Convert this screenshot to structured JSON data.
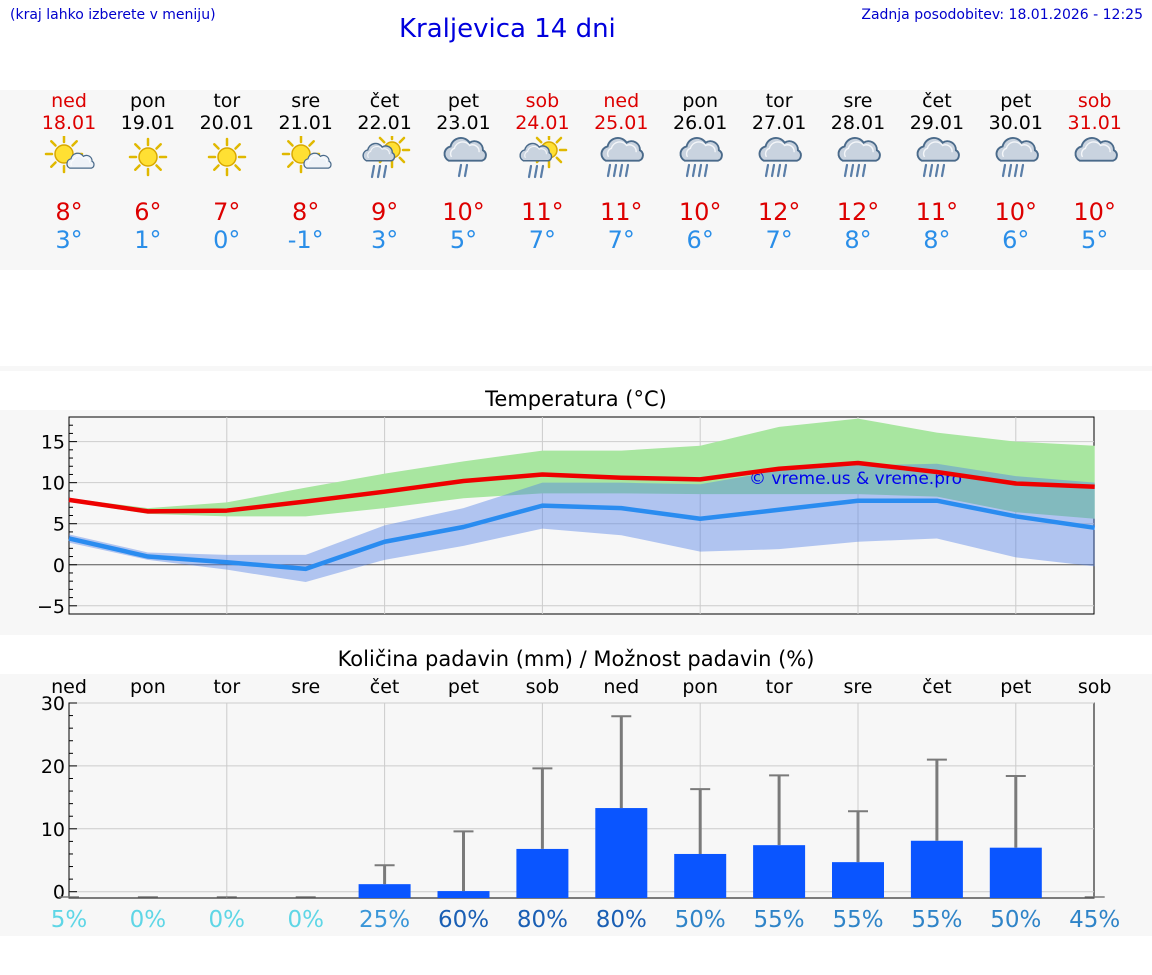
{
  "header": {
    "left_note": "(kraj lahko izberete v meniju)",
    "title": "Kraljevica 14 dni",
    "updated": "Zadnja posodobitev: 18.01.2026 - 12:25"
  },
  "days": [
    {
      "name": "ned",
      "date": "18.01",
      "weekend": true,
      "icon": "sun-cloud-icon",
      "max": "8°",
      "min": "3°"
    },
    {
      "name": "pon",
      "date": "19.01",
      "weekend": false,
      "icon": "sun-icon",
      "max": "6°",
      "min": "1°"
    },
    {
      "name": "tor",
      "date": "20.01",
      "weekend": false,
      "icon": "sun-icon",
      "max": "7°",
      "min": "0°"
    },
    {
      "name": "sre",
      "date": "21.01",
      "weekend": false,
      "icon": "sun-cloud-icon",
      "max": "8°",
      "min": "-1°"
    },
    {
      "name": "čet",
      "date": "22.01",
      "weekend": false,
      "icon": "sun-cloud-rain-icon",
      "max": "9°",
      "min": "3°"
    },
    {
      "name": "pet",
      "date": "23.01",
      "weekend": false,
      "icon": "cloud-light-rain-icon",
      "max": "10°",
      "min": "5°"
    },
    {
      "name": "sob",
      "date": "24.01",
      "weekend": true,
      "icon": "sun-cloud-rain-icon",
      "max": "11°",
      "min": "7°"
    },
    {
      "name": "ned",
      "date": "25.01",
      "weekend": true,
      "icon": "cloud-rain-icon",
      "max": "11°",
      "min": "7°"
    },
    {
      "name": "pon",
      "date": "26.01",
      "weekend": false,
      "icon": "cloud-rain-icon",
      "max": "10°",
      "min": "6°"
    },
    {
      "name": "tor",
      "date": "27.01",
      "weekend": false,
      "icon": "cloud-rain-icon",
      "max": "12°",
      "min": "7°"
    },
    {
      "name": "sre",
      "date": "28.01",
      "weekend": false,
      "icon": "cloud-rain-icon",
      "max": "12°",
      "min": "8°"
    },
    {
      "name": "čet",
      "date": "29.01",
      "weekend": false,
      "icon": "cloud-rain-icon",
      "max": "11°",
      "min": "8°"
    },
    {
      "name": "pet",
      "date": "30.01",
      "weekend": false,
      "icon": "cloud-rain-icon",
      "max": "10°",
      "min": "6°"
    },
    {
      "name": "sob",
      "date": "31.01",
      "weekend": true,
      "icon": "cloud-icon",
      "max": "10°",
      "min": "5°"
    }
  ],
  "colors": {
    "weekend": "#dd0000",
    "weekday": "#000000",
    "tmax": "#dd0000",
    "tmin": "#2a8ee8",
    "max_band": "#a8e6a0",
    "min_band": "#a9c3f4",
    "overlap_band": "#7cc29c",
    "bar": "#0a55ff",
    "error": "#7a7a7a"
  },
  "chart_data": [
    {
      "type": "line",
      "title": "Temperatura (°C)",
      "watermark": "© vreme.us & vreme.pro",
      "ylim": [
        -6,
        18
      ],
      "yticks": [
        -5,
        0,
        5,
        10,
        15
      ],
      "ytick_labels": [
        "−5",
        "0",
        "5",
        "10",
        "15"
      ],
      "x": [
        0,
        1,
        2,
        3,
        4,
        5,
        6,
        7,
        8,
        9,
        10,
        11,
        12,
        13
      ],
      "series": [
        {
          "name": "max",
          "values": [
            7.9,
            6.5,
            6.6,
            7.7,
            8.9,
            10.2,
            11.0,
            10.6,
            10.4,
            11.7,
            12.4,
            11.3,
            9.9,
            9.5
          ],
          "band_low": [
            7.7,
            6.2,
            5.9,
            5.9,
            6.9,
            8.1,
            8.7,
            8.7,
            8.6,
            8.6,
            8.6,
            8.3,
            6.4,
            5.6
          ],
          "band_high": [
            8.1,
            6.9,
            7.6,
            9.4,
            11.1,
            12.6,
            13.9,
            13.9,
            14.5,
            16.8,
            17.8,
            16.1,
            15.0,
            14.5
          ]
        },
        {
          "name": "min",
          "values": [
            3.2,
            1.0,
            0.3,
            -0.5,
            2.8,
            4.6,
            7.2,
            6.9,
            5.6,
            6.7,
            7.8,
            7.8,
            5.9,
            4.5
          ],
          "band_low": [
            2.7,
            0.6,
            -0.6,
            -2.1,
            0.6,
            2.3,
            4.4,
            3.6,
            1.6,
            1.9,
            2.8,
            3.2,
            0.9,
            -0.2
          ],
          "band_high": [
            3.7,
            1.5,
            1.2,
            1.2,
            4.8,
            6.9,
            10.0,
            10.0,
            9.8,
            11.5,
            12.1,
            12.3,
            10.8,
            10.0
          ]
        }
      ]
    },
    {
      "type": "bar",
      "title": "Količina padavin (mm) / Možnost padavin (%)",
      "ylim": [
        -1,
        30
      ],
      "yticks": [
        0,
        10,
        20,
        30
      ],
      "ytick_labels": [
        "0",
        "10",
        "20",
        "30"
      ],
      "categories": [
        "ned",
        "pon",
        "tor",
        "sre",
        "čet",
        "pet",
        "sob",
        "ned",
        "pon",
        "tor",
        "sre",
        "čet",
        "pet",
        "sob"
      ],
      "values": [
        0,
        0,
        0,
        0,
        1.2,
        0.1,
        6.8,
        13.3,
        6.0,
        7.4,
        4.7,
        8.1,
        7.0,
        0
      ],
      "error_high": [
        0,
        0,
        0,
        0,
        4.2,
        9.6,
        19.6,
        27.9,
        16.3,
        18.5,
        12.8,
        21.0,
        18.4,
        0
      ],
      "probability_labels": [
        "5%",
        "0%",
        "0%",
        "0%",
        "25%",
        "60%",
        "80%",
        "80%",
        "50%",
        "55%",
        "55%",
        "55%",
        "50%",
        "45%"
      ],
      "probability": [
        5,
        0,
        0,
        0,
        25,
        60,
        80,
        80,
        50,
        55,
        55,
        55,
        50,
        45
      ]
    }
  ]
}
